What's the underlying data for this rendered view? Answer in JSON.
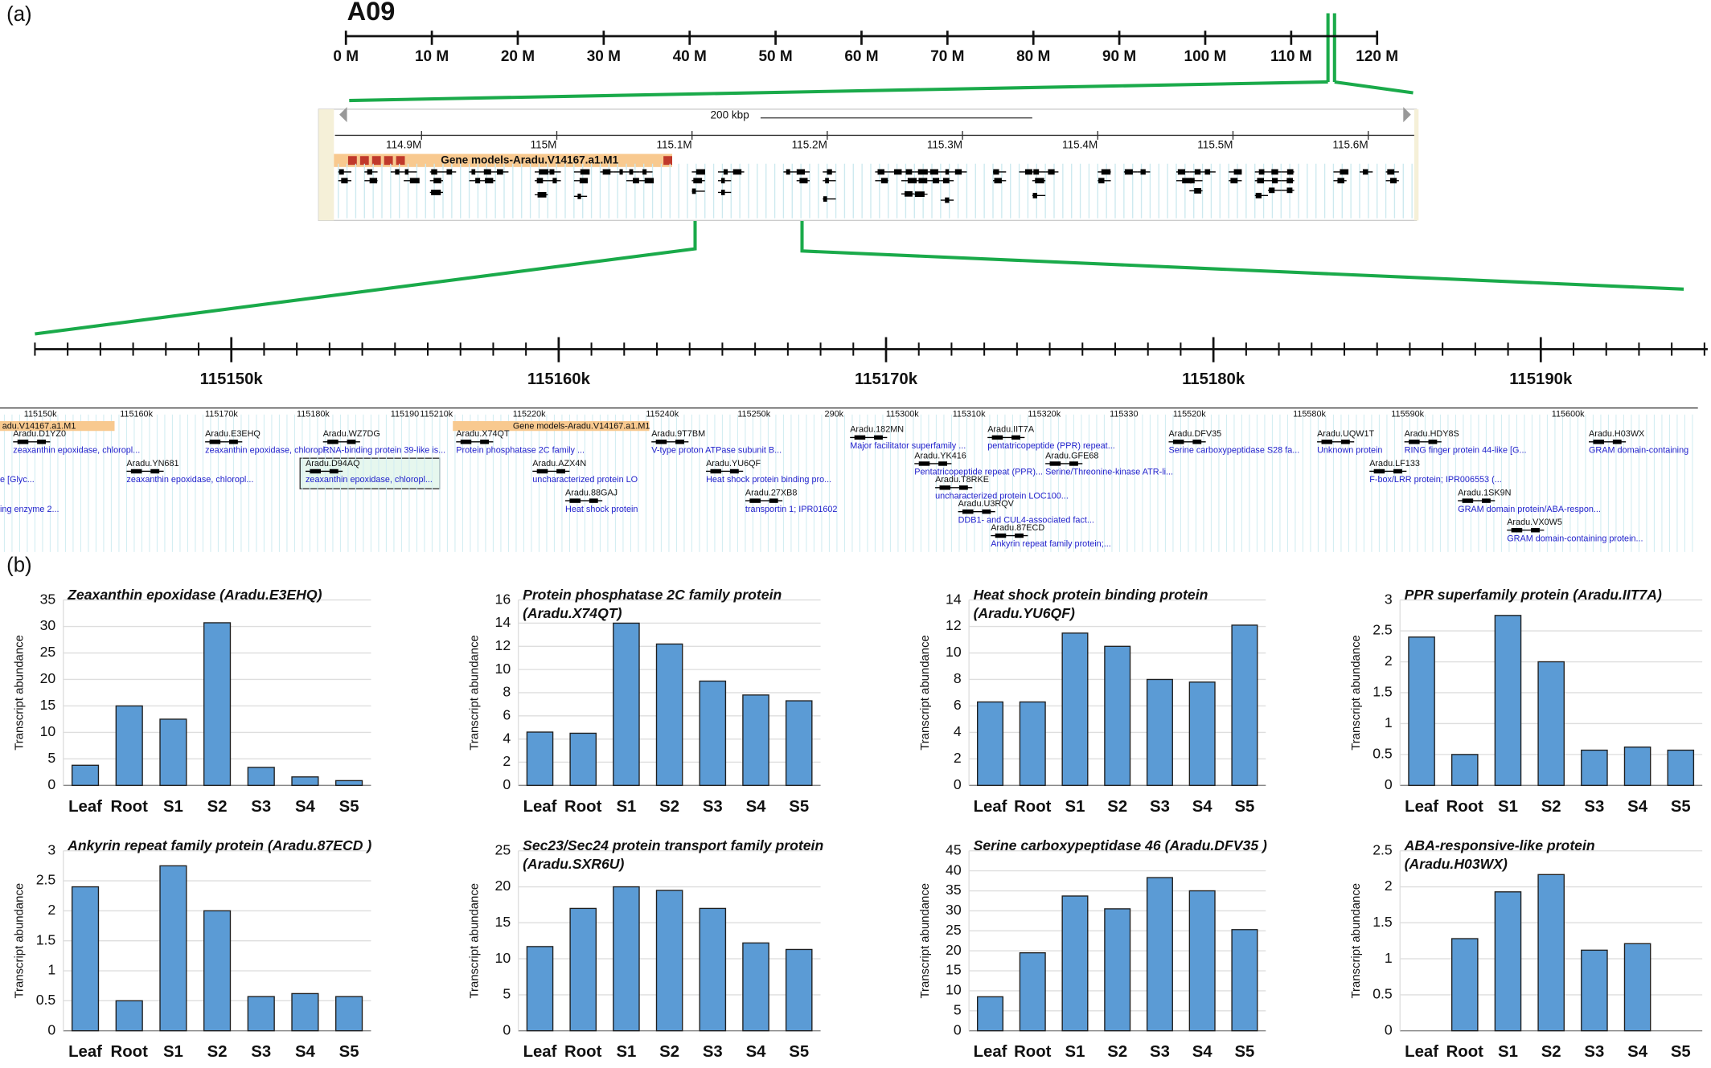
{
  "panel_labels": [
    "(a)",
    "(b)"
  ],
  "chromosome": {
    "name": "A09",
    "xlim": [
      0,
      120
    ],
    "xticks": [
      {
        "value": 0,
        "label": "0 M"
      },
      {
        "value": 10,
        "label": "10 M"
      },
      {
        "value": 20,
        "label": "20 M"
      },
      {
        "value": 30,
        "label": "30 M"
      },
      {
        "value": 40,
        "label": "40 M"
      },
      {
        "value": 50,
        "label": "50 M"
      },
      {
        "value": 60,
        "label": "60 M"
      },
      {
        "value": 70,
        "label": "70 M"
      },
      {
        "value": 80,
        "label": "80 M"
      },
      {
        "value": 90,
        "label": "90 M"
      },
      {
        "value": 100,
        "label": "100 M"
      },
      {
        "value": 110,
        "label": "110 M"
      },
      {
        "value": 120,
        "label": "120 M"
      }
    ]
  },
  "browser": {
    "scale_label": "200 kbp",
    "track_label": "Gene models-Aradu.V14167.a1.M1",
    "xlim": [
      114.836,
      115.634
    ],
    "xticks": [
      {
        "value": 114.9,
        "label": "114.9M"
      },
      {
        "value": 115,
        "label": "115M"
      },
      {
        "value": 115.1,
        "label": "115.1M"
      },
      {
        "value": 115.2,
        "label": "115.2M"
      },
      {
        "value": 115.3,
        "label": "115.3M"
      },
      {
        "value": 115.4,
        "label": "115.4M"
      },
      {
        "value": 115.5,
        "label": "115.5M"
      },
      {
        "value": 115.6,
        "label": "115.6M"
      }
    ]
  },
  "zoom": {
    "xlim": [
      115144,
      115195.1
    ],
    "xticks": [
      {
        "value": 115150,
        "label": "115150k"
      },
      {
        "value": 115160,
        "label": "115160k"
      },
      {
        "value": 115170,
        "label": "115170k"
      },
      {
        "value": 115180,
        "label": "115180k"
      },
      {
        "value": 115190,
        "label": "115190k"
      }
    ]
  },
  "strip": {
    "ruler": [
      "115150k",
      "115160k",
      "115170k",
      "115180k",
      "115190",
      "115210k",
      "115220k",
      "115240k",
      "115250k",
      "290k",
      "115300k",
      "115310k",
      "115320k",
      "115330",
      "115520k",
      "115580k",
      "115590k",
      "115600k"
    ],
    "tracks": [
      "adu.V14167.a1.M1",
      "Gene models-Aradu.V14167.a1.M1"
    ],
    "fragments": [
      "e [Glyc...",
      "ing enzyme 2..."
    ],
    "genes": [
      {
        "name": "Aradu.D1YZ0",
        "description": "zeaxanthin epoxidase, chloropl..."
      },
      {
        "name": "Aradu.E3EHQ",
        "description": "zeaxanthin epoxidase, chloropl..."
      },
      {
        "name": "Aradu.YN681",
        "description": "zeaxanthin epoxidase, chloropl..."
      },
      {
        "name": "Aradu.WZ7DG",
        "description": "RNA-binding protein 39-like is..."
      },
      {
        "name": "Aradu.D94AQ",
        "description": "zeaxanthin epoxidase, chloropl..."
      },
      {
        "name": "Aradu.X74QT",
        "description": "Protein phosphatase 2C family ..."
      },
      {
        "name": "Aradu.AZX4N",
        "description": "uncharacterized protein LO"
      },
      {
        "name": "Aradu.88GAJ",
        "description": "Heat shock protein"
      },
      {
        "name": "Aradu.9T7BM",
        "description": "V-type proton ATPase subunit B..."
      },
      {
        "name": "Aradu.YU6QF",
        "description": "Heat shock protein binding pro..."
      },
      {
        "name": "Aradu.27XB8",
        "description": "transportin 1; IPR01602"
      },
      {
        "name": "Aradu.182MN",
        "description": "Major facilitator superfamily ..."
      },
      {
        "name": "Aradu.YK416",
        "description": "Pentatricopeptide repeat (PPR)..."
      },
      {
        "name": "Aradu.T8RKE",
        "description": "uncharacterized protein LOC100..."
      },
      {
        "name": "Aradu.U3RQV",
        "description": "DDB1- and CUL4-associated fact..."
      },
      {
        "name": "Aradu.87ECD",
        "description": "Ankyrin repeat family protein;..."
      },
      {
        "name": "Aradu.IIT7A",
        "description": "pentatricopeptide (PPR) repeat..."
      },
      {
        "name": "Aradu.GFE68",
        "description": "Serine/Threonine-kinase ATR-li..."
      },
      {
        "name": "Aradu.DFV35",
        "description": "Serine carboxypeptidase S28 fa..."
      },
      {
        "name": "Aradu.UQW1T",
        "description": "Unknown protein"
      },
      {
        "name": "Aradu.HDY8S",
        "description": "RING finger protein 44-like [G..."
      },
      {
        "name": "Aradu.LF133",
        "description": "F-box/LRR protein; IPR006553 (..."
      },
      {
        "name": "Aradu.1SK9N",
        "description": "GRAM domain protein/ABA-respon..."
      },
      {
        "name": "Aradu.VX0W5",
        "description": "GRAM domain-containing protein..."
      },
      {
        "name": "Aradu.H03WX",
        "description": "GRAM domain-containing"
      }
    ]
  },
  "chart_data": [
    {
      "type": "bar",
      "title": [
        "Zeaxanthin epoxidase (Aradu.E3EHQ)"
      ],
      "y_label": "Transcript abundance",
      "categories": [
        "Leaf",
        "Root",
        "S1",
        "S2",
        "S3",
        "S4",
        "S5"
      ],
      "values": [
        3.8,
        15,
        12.5,
        30.7,
        3.4,
        1.6,
        0.9
      ],
      "color": "#5b9bd5",
      "ylim": [
        0,
        35
      ],
      "yticks": [
        0,
        5,
        10,
        15,
        20,
        25,
        30,
        35
      ],
      "grid": true
    },
    {
      "type": "bar",
      "title": [
        "Protein phosphatase 2C family protein",
        "(Aradu.X74QT)"
      ],
      "y_label": "Transcript abundance",
      "categories": [
        "Leaf",
        "Root",
        "S1",
        "S2",
        "S3",
        "S4",
        "S5"
      ],
      "values": [
        4.6,
        4.5,
        14,
        12.2,
        9,
        7.8,
        7.3
      ],
      "color": "#5b9bd5",
      "ylim": [
        0,
        16
      ],
      "yticks": [
        0,
        2,
        4,
        6,
        8,
        10,
        12,
        14,
        16
      ],
      "grid": true
    },
    {
      "type": "bar",
      "title": [
        "Heat shock protein binding protein",
        "(Aradu.YU6QF)"
      ],
      "y_label": "Transcript abundance",
      "categories": [
        "Leaf",
        "Root",
        "S1",
        "S2",
        "S3",
        "S4",
        "S5"
      ],
      "values": [
        6.3,
        6.3,
        11.5,
        10.5,
        8,
        7.8,
        12.1
      ],
      "color": "#5b9bd5",
      "ylim": [
        0,
        14
      ],
      "yticks": [
        0,
        2,
        4,
        6,
        8,
        10,
        12,
        14
      ],
      "grid": true
    },
    {
      "type": "bar",
      "title": [
        "PPR superfamily protein (Aradu.IIT7A)"
      ],
      "y_label": "Transcript abundance",
      "categories": [
        "Leaf",
        "Root",
        "S1",
        "S2",
        "S3",
        "S4",
        "S5"
      ],
      "values": [
        2.4,
        0.5,
        2.75,
        2.0,
        0.57,
        0.62,
        0.57
      ],
      "color": "#5b9bd5",
      "ylim": [
        0,
        3
      ],
      "yticks": [
        0,
        0.5,
        1,
        1.5,
        2,
        2.5,
        3
      ],
      "grid": true
    },
    {
      "type": "bar",
      "title": [
        "Ankyrin repeat family protein (Aradu.87ECD )"
      ],
      "y_label": "Transcript abundance",
      "categories": [
        "Leaf",
        "Root",
        "S1",
        "S2",
        "S3",
        "S4",
        "S5"
      ],
      "values": [
        2.4,
        0.5,
        2.75,
        2.0,
        0.57,
        0.62,
        0.57
      ],
      "color": "#5b9bd5",
      "ylim": [
        0,
        3
      ],
      "yticks": [
        0,
        0.5,
        1,
        1.5,
        2,
        2.5,
        3
      ],
      "grid": true
    },
    {
      "type": "bar",
      "title": [
        "Sec23/Sec24 protein transport family protein",
        "(Aradu.SXR6U)"
      ],
      "y_label": "Transcript abundance",
      "categories": [
        "Leaf",
        "Root",
        "S1",
        "S2",
        "S3",
        "S4",
        "S5"
      ],
      "values": [
        11.7,
        17,
        20,
        19.5,
        17,
        12.2,
        11.3
      ],
      "color": "#5b9bd5",
      "ylim": [
        0,
        25
      ],
      "yticks": [
        0,
        5,
        10,
        15,
        20,
        25
      ],
      "grid": true
    },
    {
      "type": "bar",
      "title": [
        "Serine carboxypeptidase 46 (Aradu.DFV35 )"
      ],
      "y_label": "Transcript abundance",
      "categories": [
        "Leaf",
        "Root",
        "S1",
        "S2",
        "S3",
        "S4",
        "S5"
      ],
      "values": [
        8.5,
        19.5,
        33.7,
        30.5,
        38.3,
        35,
        25.3
      ],
      "color": "#5b9bd5",
      "ylim": [
        0,
        45
      ],
      "yticks": [
        0,
        5,
        10,
        15,
        20,
        25,
        30,
        35,
        40,
        45
      ],
      "grid": true
    },
    {
      "type": "bar",
      "title": [
        "ABA-responsive-like protein",
        "(Aradu.H03WX)"
      ],
      "y_label": "Transcript abundance",
      "categories": [
        "Leaf",
        "Root",
        "S1",
        "S2",
        "S3",
        "S4",
        "S5"
      ],
      "values": [
        0,
        1.28,
        1.93,
        2.17,
        1.12,
        1.21,
        0
      ],
      "color": "#5b9bd5",
      "ylim": [
        0,
        2.5
      ],
      "yticks": [
        0,
        0.5,
        1,
        1.5,
        2,
        2.5
      ],
      "grid": true
    }
  ]
}
